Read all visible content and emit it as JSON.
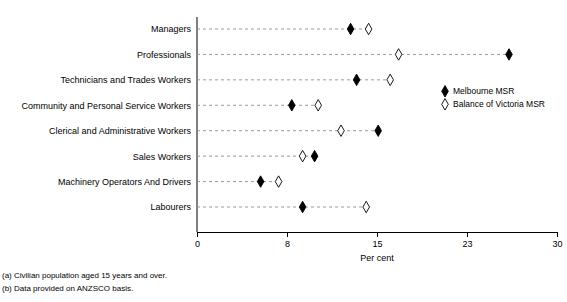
{
  "chart_data": {
    "type": "dot",
    "orientation": "horizontal",
    "categories": [
      "Managers",
      "Professionals",
      "Technicians and Trades Workers",
      "Community and Personal Service Workers",
      "Clerical and Administrative Workers",
      "Sales Workers",
      "Machinery Operators And Drivers",
      "Labourers"
    ],
    "series": [
      {
        "name": "Melbourne MSR",
        "color": "#000000",
        "marker": "diamond",
        "values": [
          12.8,
          26.0,
          13.3,
          7.9,
          15.1,
          9.8,
          5.3,
          8.8
        ]
      },
      {
        "name": "Balance of Victoria MSR",
        "color": "#000000",
        "marker": "diamond-open",
        "values": [
          14.3,
          16.8,
          16.1,
          10.1,
          12.0,
          8.8,
          6.8,
          14.1
        ]
      }
    ],
    "xlabel": "Per cent",
    "xlim": [
      0,
      30
    ],
    "xticks": [
      0,
      {
        "value": 7.5,
        "label": "8"
      },
      15,
      {
        "value": 22.5,
        "label": "23"
      },
      30
    ],
    "grid": false,
    "legend": "right",
    "footnotes": [
      "(a) Civilian population aged 15 years and over.",
      "(b) Data provided on ANZSCO basis."
    ]
  }
}
